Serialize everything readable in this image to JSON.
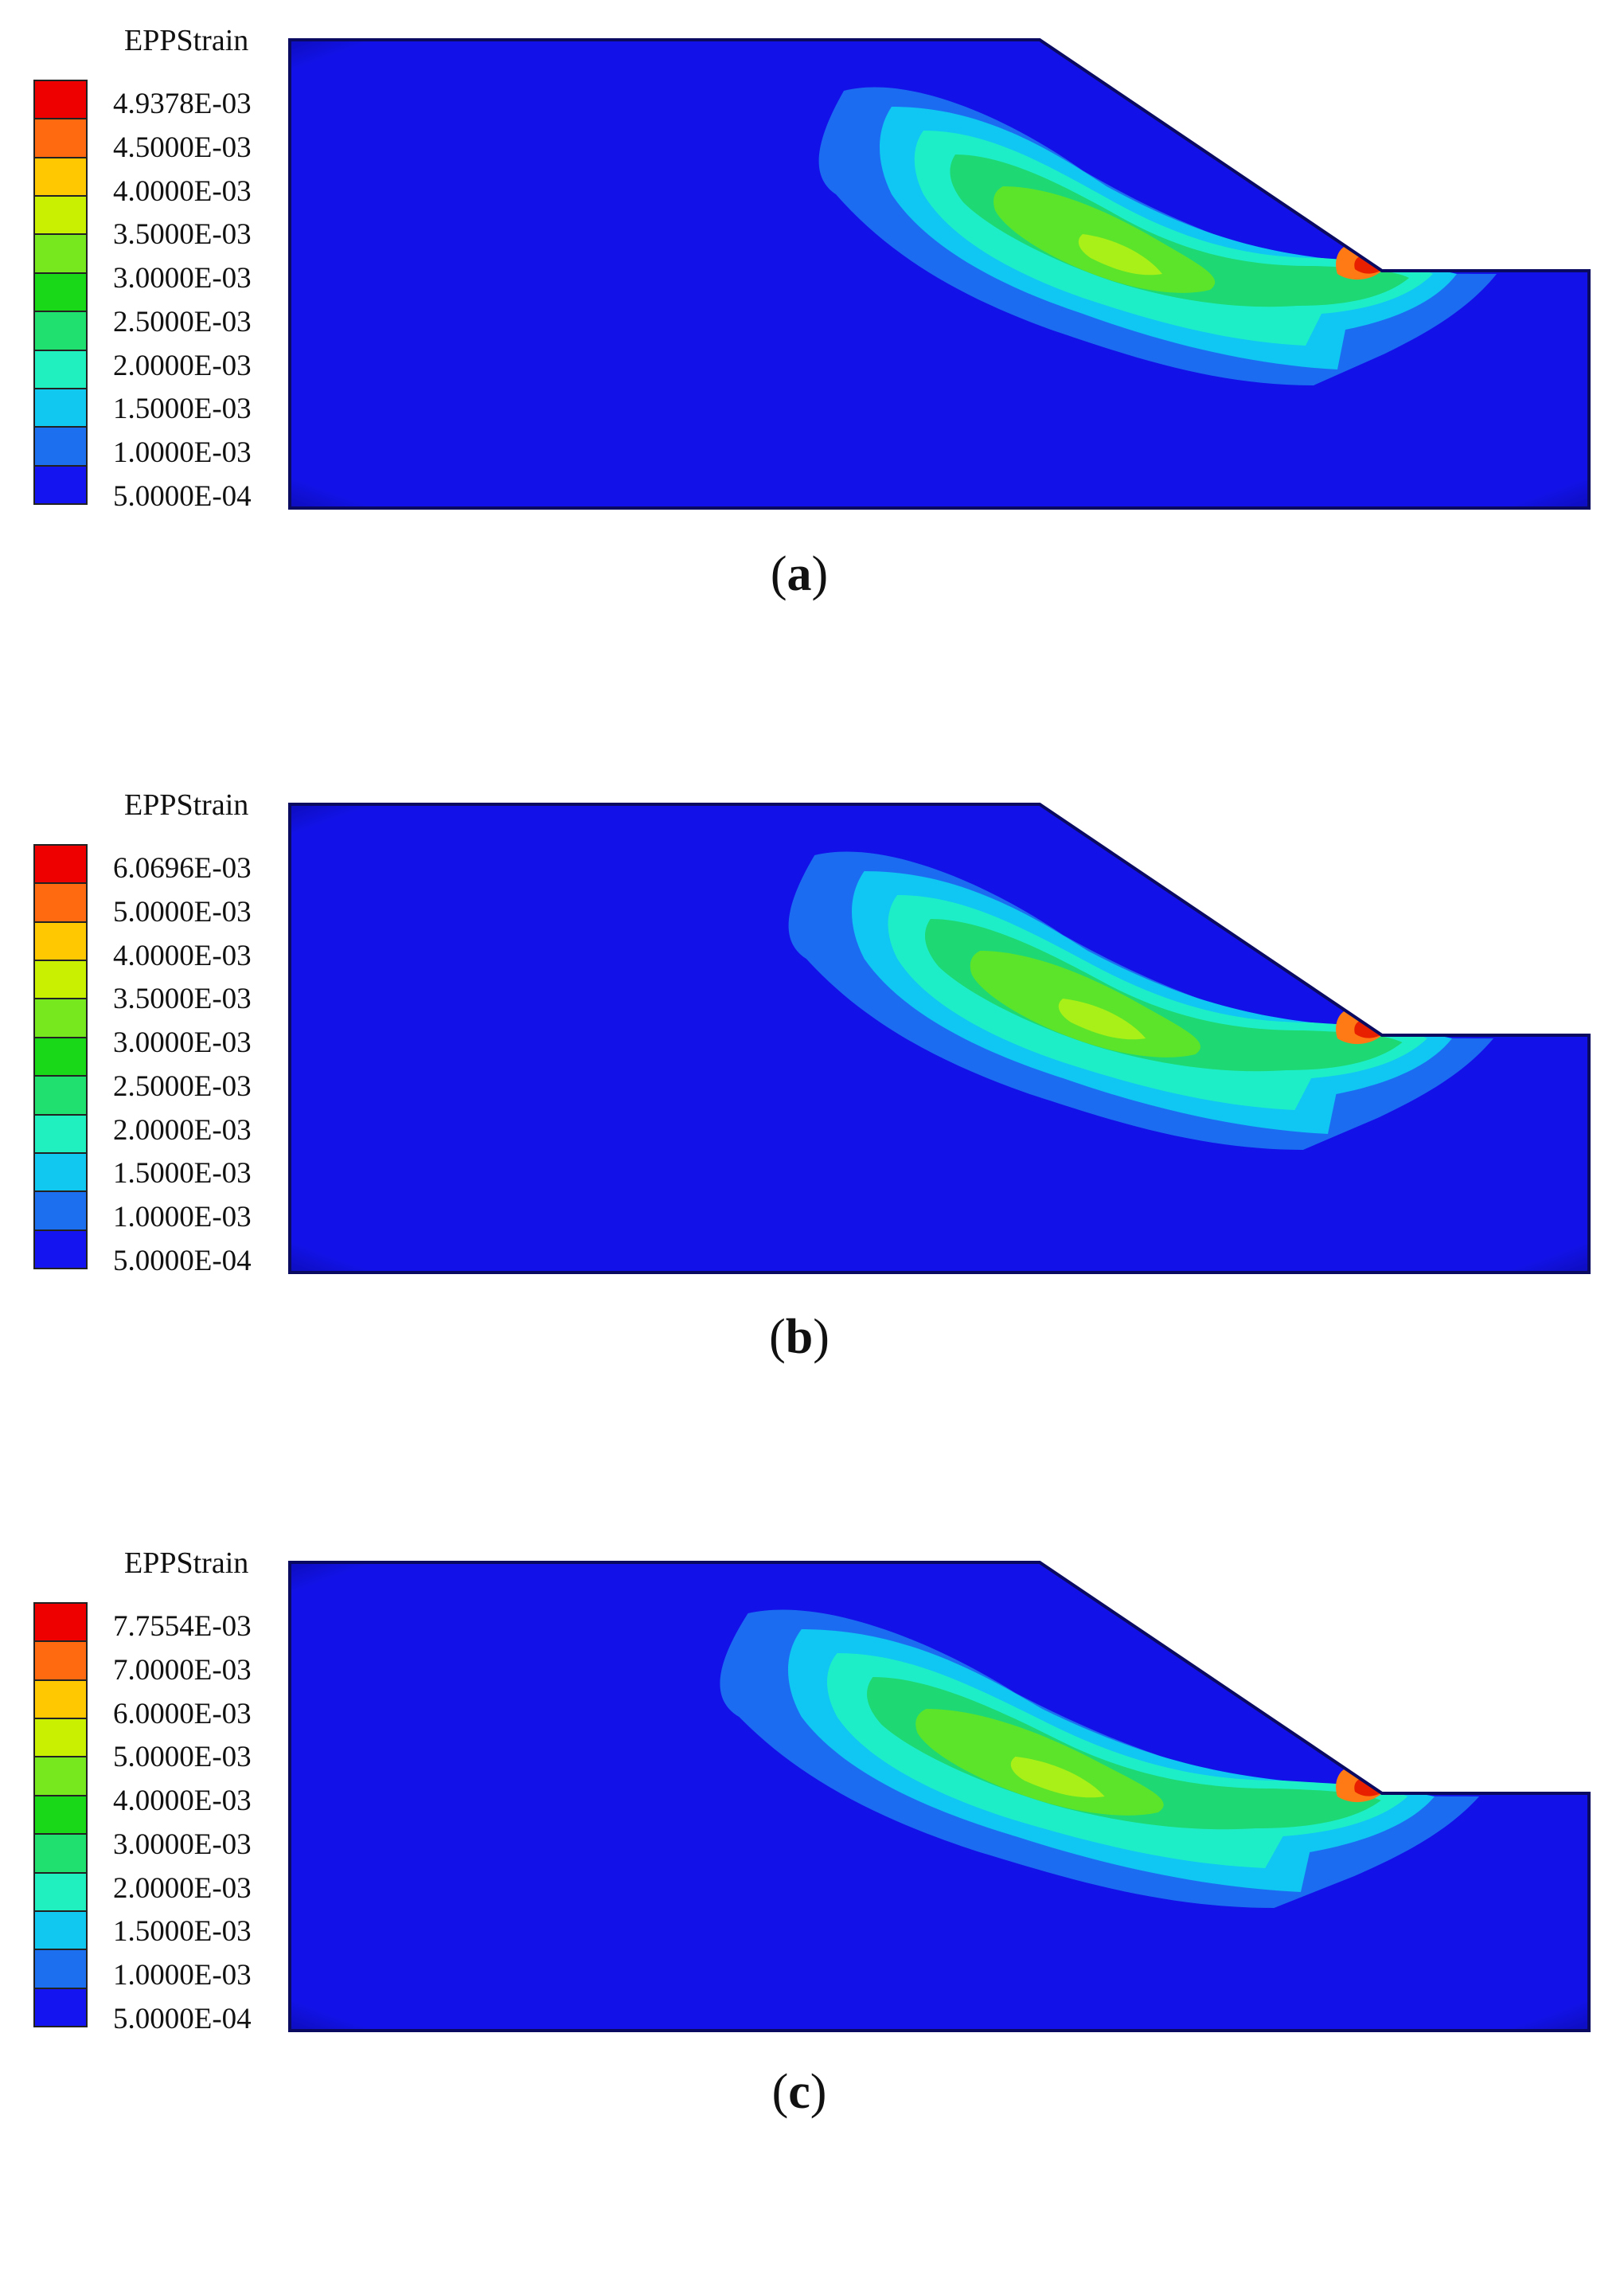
{
  "figure": {
    "panels": [
      {
        "legend_title": "EPPStrain",
        "legend_levels": [
          "4.9378E-03",
          "4.5000E-03",
          "4.0000E-03",
          "3.5000E-03",
          "3.0000E-03",
          "2.5000E-03",
          "2.0000E-03",
          "1.5000E-03",
          "1.0000E-03",
          "5.0000E-04"
        ],
        "caption_letter": "a"
      },
      {
        "legend_title": "EPPStrain",
        "legend_levels": [
          "6.0696E-03",
          "5.0000E-03",
          "4.0000E-03",
          "3.5000E-03",
          "3.0000E-03",
          "2.5000E-03",
          "2.0000E-03",
          "1.5000E-03",
          "1.0000E-03",
          "5.0000E-04"
        ],
        "caption_letter": "b"
      },
      {
        "legend_title": "EPPStrain",
        "legend_levels": [
          "7.7554E-03",
          "7.0000E-03",
          "6.0000E-03",
          "5.0000E-03",
          "4.0000E-03",
          "3.0000E-03",
          "2.0000E-03",
          "1.5000E-03",
          "1.0000E-03",
          "5.0000E-04"
        ],
        "caption_letter": "c"
      }
    ],
    "legend_colors": [
      "#ee0000",
      "#ff6a10",
      "#ffc800",
      "#c8f000",
      "#78e81e",
      "#18d818",
      "#20e070",
      "#20f0c0",
      "#10c8f0",
      "#1c70f0",
      "#1414f0"
    ],
    "colors": {
      "background_field": "#1212e8",
      "band_blue": "#1c6cf2",
      "band_lightblue": "#10c6f2",
      "band_cyan": "#1eeec8",
      "band_green": "#1ed874",
      "band_lime": "#5ce42a",
      "band_yellowgreen": "#a8f018",
      "band_orange": "#ff7a14",
      "band_red": "#e82000",
      "edge_shadow": "#000050"
    }
  }
}
